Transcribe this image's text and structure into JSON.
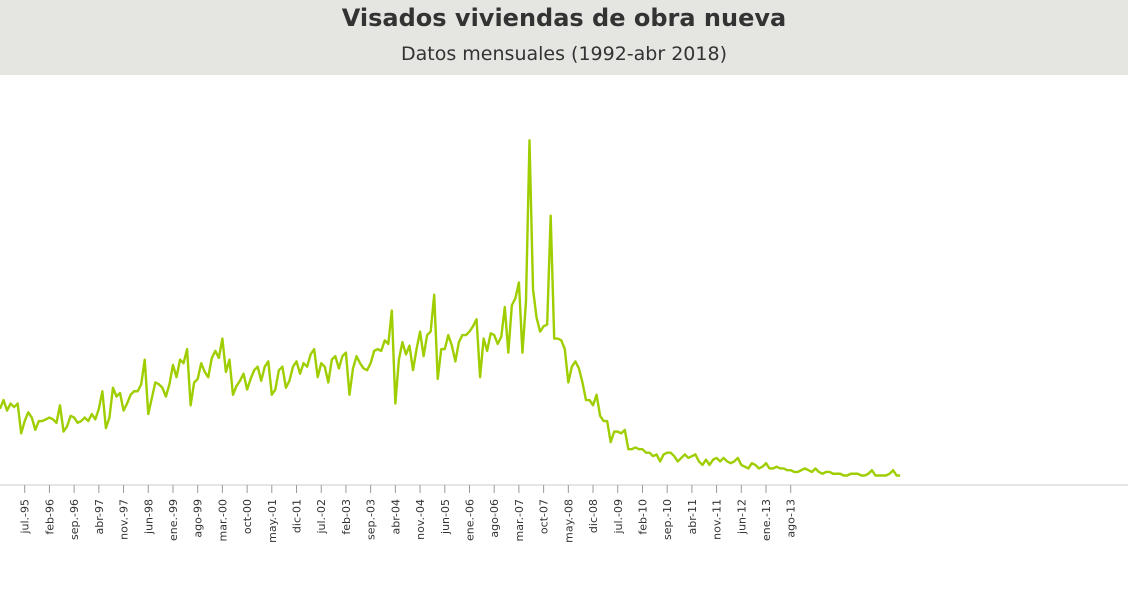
{
  "chart_data": {
    "type": "line",
    "title": "Visados viviendas de obra nueva",
    "subtitle": "Datos mensuales (1992-abr 2018)",
    "xlabel": "",
    "ylabel": "",
    "grid": false,
    "legend": "none",
    "x_tick_labels": [
      "jul.-95",
      "feb-96",
      "sep.-96",
      "abr-97",
      "nov.-97",
      "jun-98",
      "ene.-99",
      "ago-99",
      "mar.-00",
      "oct-00",
      "may.-01",
      "dic-01",
      "jul.-02",
      "feb-03",
      "sep.-03",
      "abr-04",
      "nov.-04",
      "jun-05",
      "ene.-06",
      "ago-06",
      "mar.-07",
      "oct-07",
      "may.-08",
      "dic-08",
      "jul.-09",
      "feb-10",
      "sep.-10",
      "abr-11",
      "nov.-11",
      "jun-12",
      "ene.-13",
      "ago-13"
    ],
    "series": [
      {
        "color": "#9fce00",
        "start": "1994-12",
        "values": [
          20,
          22.5,
          19.5,
          21.5,
          20.5,
          21.5,
          13,
          16.5,
          19,
          17.5,
          14,
          16.5,
          16.5,
          17,
          17.5,
          17,
          16,
          21,
          13.5,
          15,
          18,
          17.5,
          16,
          16.5,
          17.5,
          16.5,
          18.5,
          17,
          20,
          25,
          14.5,
          17.5,
          26,
          23.5,
          24.5,
          19.5,
          21.5,
          24,
          25,
          25,
          27,
          34,
          18.5,
          23,
          27.5,
          27,
          26,
          23.5,
          27,
          32.5,
          29,
          34,
          33,
          37,
          21,
          27.5,
          28.5,
          33,
          30.5,
          29,
          34.5,
          36.5,
          34.5,
          40,
          30.5,
          34,
          24,
          26.5,
          28,
          30,
          25.5,
          28.5,
          31,
          32,
          28,
          32,
          33.5,
          24,
          25.5,
          31,
          32,
          26,
          28,
          32,
          33.5,
          30,
          33,
          32,
          35.5,
          37,
          29,
          33,
          32,
          27.5,
          34,
          35,
          31.5,
          35,
          36,
          24,
          31.5,
          35,
          33,
          31.5,
          31,
          33,
          36.5,
          37,
          36.5,
          39.5,
          38.5,
          48,
          21.5,
          34,
          39,
          35.5,
          38,
          31,
          37,
          42,
          35,
          41,
          42,
          52.5,
          28.5,
          37,
          37,
          41,
          38,
          33.5,
          39,
          41,
          41,
          42,
          43.5,
          45.5,
          29,
          40,
          36.5,
          41.5,
          41,
          38.5,
          40.5,
          49,
          36,
          49.5,
          51.5,
          56,
          36,
          50.5,
          96.5,
          54,
          46,
          42,
          43.5,
          44,
          75,
          40,
          40,
          39.5,
          37,
          27.5,
          32,
          33.5,
          31.5,
          27.5,
          22.5,
          22.5,
          21,
          24,
          18,
          16.5,
          16.5,
          10.5,
          13.5,
          13.5,
          13,
          14,
          8.5,
          8.5,
          9,
          8.5,
          8.5,
          7.5,
          7.5,
          6.5,
          7,
          5,
          7,
          7.5,
          7.5,
          6.5,
          5,
          6,
          7,
          6,
          6.5,
          7,
          5,
          4,
          5.5,
          4,
          5.5,
          6,
          5,
          6,
          5,
          4.5,
          5,
          6,
          4,
          3.5,
          3,
          4.5,
          4,
          3,
          3.5,
          4.5,
          3,
          3,
          3.5,
          3,
          3,
          2.5,
          2.5,
          2,
          2,
          2.5,
          3,
          2.5,
          2,
          3,
          2,
          1.5,
          2,
          2,
          1.5,
          1.5,
          1.5,
          1,
          1,
          1.5,
          1.5,
          1.5,
          1,
          1,
          1.5,
          2.5,
          1,
          1,
          1,
          1,
          1.5,
          2.5,
          1,
          1
        ]
      }
    ]
  }
}
